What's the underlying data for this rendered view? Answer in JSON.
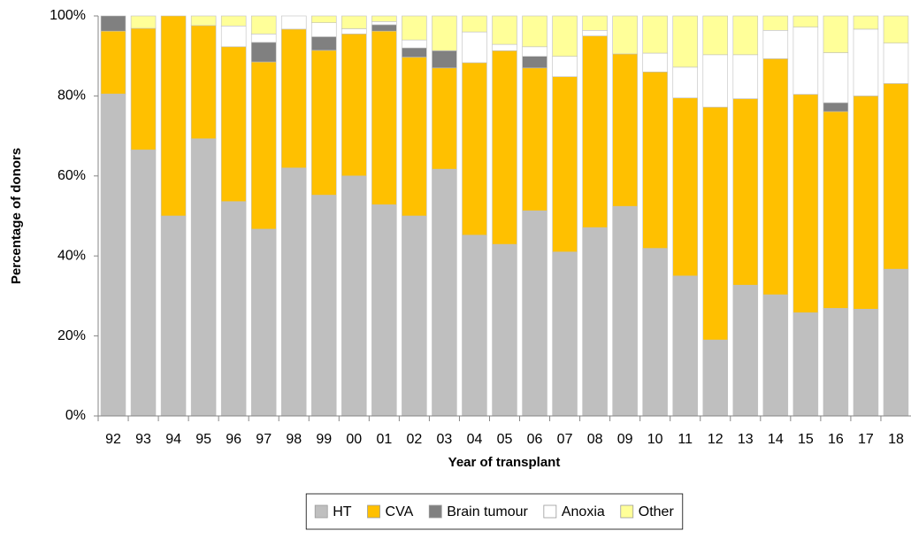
{
  "chart_data": {
    "type": "stacked_bar",
    "y_label": "Percentage of donors",
    "x_label": "Year of transplant",
    "categories": [
      "92",
      "93",
      "94",
      "95",
      "96",
      "97",
      "98",
      "99",
      "00",
      "01",
      "02",
      "03",
      "04",
      "05",
      "06",
      "07",
      "08",
      "09",
      "10",
      "11",
      "12",
      "13",
      "14",
      "15",
      "16",
      "17",
      "18"
    ],
    "series": [
      {
        "name": "HT",
        "color": "#bfbfbf",
        "values": [
          80.5,
          66.5,
          50,
          69.3,
          53.6,
          46.7,
          62,
          55.2,
          60,
          52.8,
          50,
          61.7,
          45.2,
          42.9,
          51.3,
          41,
          47.1,
          52.4,
          41.9,
          35,
          19,
          32.7,
          30.3,
          25.8,
          26.9,
          26.7,
          36.7
        ]
      },
      {
        "name": "CVA",
        "color": "#ffc000",
        "values": [
          15.7,
          30.4,
          50,
          28.3,
          38.7,
          41.8,
          34.7,
          36.2,
          35.5,
          43.4,
          39.7,
          25.3,
          43.1,
          48.4,
          35.7,
          43.8,
          47.9,
          38.1,
          44.1,
          44.5,
          58.2,
          46.6,
          59,
          54.6,
          49.2,
          53.3,
          46.4
        ]
      },
      {
        "name": "Brain tumour",
        "color": "#808080",
        "values": [
          3.8,
          0,
          0,
          0,
          0,
          4.9,
          0,
          3.4,
          0,
          1.6,
          2.3,
          4.3,
          0,
          0,
          2.9,
          0,
          0,
          0,
          0,
          0,
          0,
          0,
          0,
          0,
          2.2,
          0,
          0
        ]
      },
      {
        "name": "Anoxia",
        "color": "#ffffff",
        "values": [
          0,
          0,
          0,
          0,
          5.2,
          2.1,
          3.3,
          3.5,
          1.3,
          0.8,
          2,
          0,
          7.7,
          1.6,
          2.4,
          5.1,
          1.4,
          0,
          4.7,
          7.7,
          13.1,
          11,
          7.1,
          16.8,
          12.5,
          16.7,
          10.1
        ]
      },
      {
        "name": "Other",
        "color": "#ffff99",
        "values": [
          0,
          3.1,
          0,
          2.4,
          2.5,
          4.5,
          0,
          1.7,
          3.2,
          1.4,
          6,
          8.7,
          4,
          7.1,
          7.7,
          10.1,
          3.6,
          9.5,
          9.3,
          12.8,
          9.7,
          9.7,
          3.6,
          2.8,
          9.2,
          3.3,
          6.8
        ]
      }
    ],
    "ylim": [
      0,
      100
    ],
    "yticks": [
      {
        "value": 0,
        "label": "0%"
      },
      {
        "value": 20,
        "label": "20%"
      },
      {
        "value": 40,
        "label": "40%"
      },
      {
        "value": 60,
        "label": "60%"
      },
      {
        "value": 80,
        "label": "80%"
      },
      {
        "value": 100,
        "label": "100%"
      }
    ],
    "legend": "bottom"
  }
}
